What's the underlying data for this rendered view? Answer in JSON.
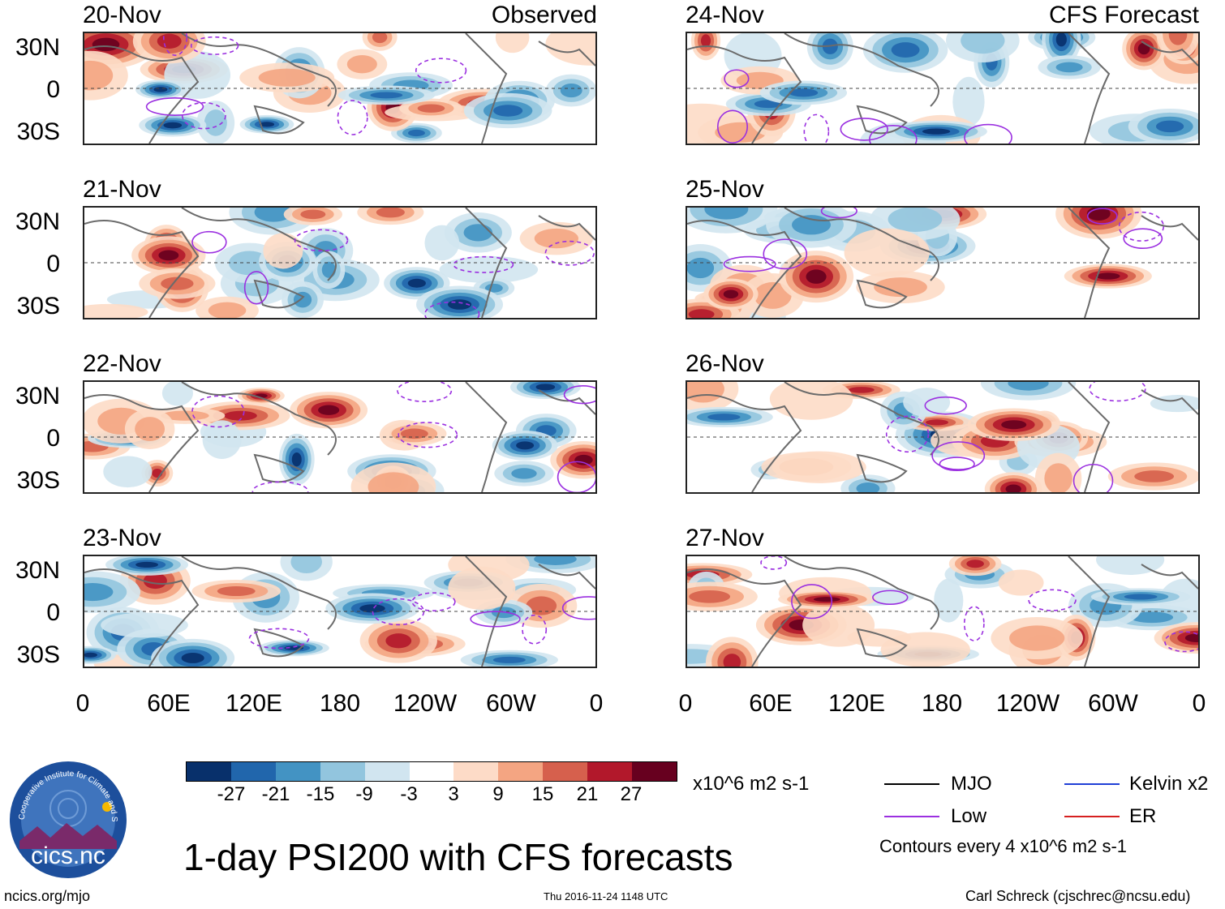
{
  "panels_observed": [
    {
      "date": "20-Nov",
      "source": "Observed"
    },
    {
      "date": "21-Nov",
      "source": ""
    },
    {
      "date": "22-Nov",
      "source": ""
    },
    {
      "date": "23-Nov",
      "source": ""
    }
  ],
  "panels_forecast": [
    {
      "date": "24-Nov",
      "source": "CFS Forecast"
    },
    {
      "date": "25-Nov",
      "source": ""
    },
    {
      "date": "26-Nov",
      "source": ""
    },
    {
      "date": "27-Nov",
      "source": ""
    }
  ],
  "lat_labels": [
    "30N",
    "0",
    "30S"
  ],
  "lon_labels": [
    "0",
    "60E",
    "120E",
    "180",
    "120W",
    "60W",
    "0"
  ],
  "colorbar": {
    "labels": [
      "-27",
      "-21",
      "-15",
      "-9",
      "-3",
      "3",
      "9",
      "15",
      "21",
      "27"
    ],
    "colors": [
      "#08306b",
      "#2166ac",
      "#4393c3",
      "#92c5de",
      "#d1e5f0",
      "#ffffff",
      "#fddbc7",
      "#f4a582",
      "#d6604d",
      "#b2182b",
      "#67001f"
    ],
    "units": "x10^6 m2 s-1"
  },
  "legend": {
    "items": [
      {
        "label": "MJO",
        "color": "#000000"
      },
      {
        "label": "Kelvin x2",
        "color": "#1f3fd6"
      },
      {
        "label": "Low",
        "color": "#9b30e0"
      },
      {
        "label": "ER",
        "color": "#d62020"
      }
    ],
    "contour_note": "Contours every 4 x10^6 m2 s-1"
  },
  "title": "1-day PSI200 with CFS forecasts",
  "logo_text": "cics.nc",
  "logo_ring_text": "Cooperative Institute for Climate and Satellites",
  "footer": {
    "left": "ncics.org/mjo",
    "center": "Thu 2016-11-24 1148 UTC",
    "right": "Carl Schreck (cjschrec@ncsu.edu)"
  }
}
